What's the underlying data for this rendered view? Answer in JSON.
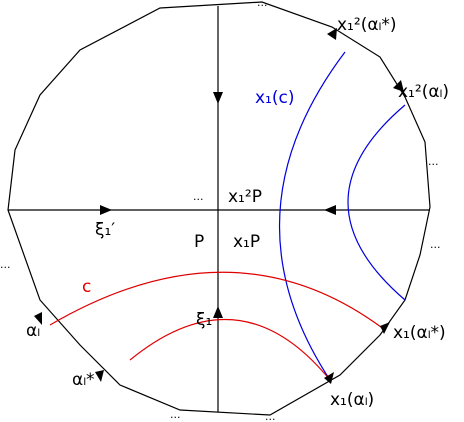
{
  "labels": {
    "x1sq_alpha_star": "x₁²(αₗ*)",
    "x1sq_alpha": "x₁²(αₗ)",
    "x1_c": "x₁(c)",
    "x1sq_P": "x₁²P",
    "xi1_prime": "ξ₁′",
    "P": "P",
    "x1_P": "x₁P",
    "c": "c",
    "alpha": "αₗ",
    "xi1": "ξ₁",
    "x1_alpha_star": "x₁(αₗ*)",
    "alpha_star": "αₗ*",
    "x1_alpha": "x₁(αₗ)"
  },
  "ellipses": [
    "...",
    "...",
    "...",
    "...",
    "...",
    "...",
    "..."
  ]
}
